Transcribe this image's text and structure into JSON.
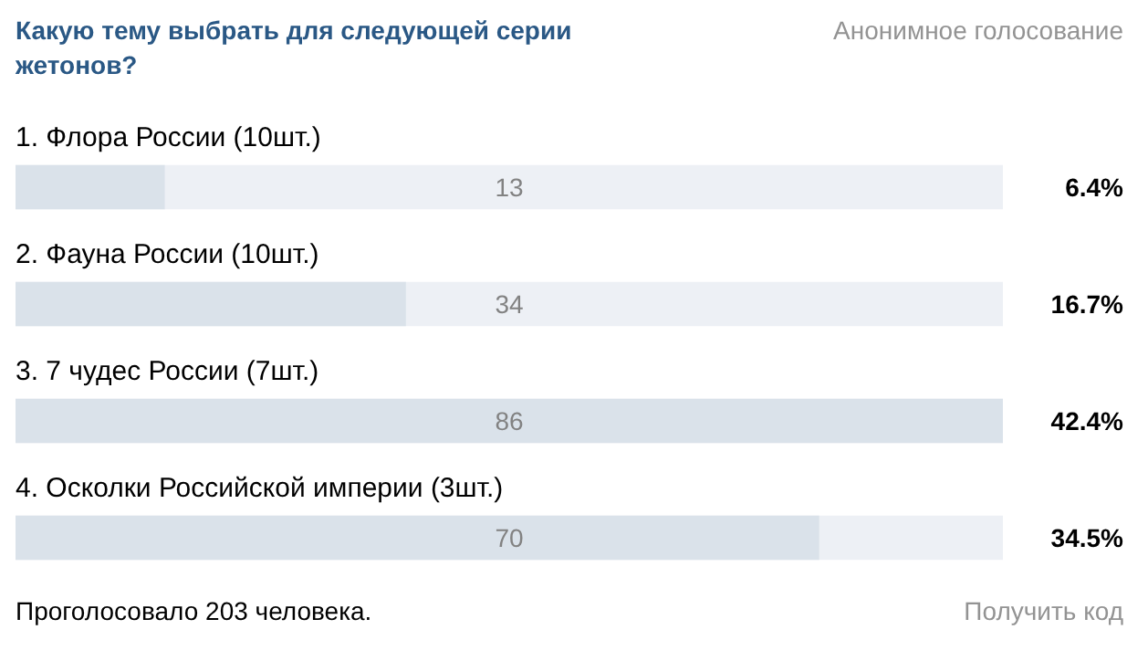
{
  "chart_data": {
    "type": "bar",
    "orientation": "horizontal",
    "title": "Какую тему выбрать для следующей серии жетонов?",
    "subtitle": "Анонимное голосование",
    "categories": [
      "1. Флора России (10шт.)",
      "2. Фауна России (10шт.)",
      "3. 7 чудес России (7шт.)",
      "4. Осколки Российской империи (3шт.)"
    ],
    "values": [
      13,
      34,
      86,
      70
    ],
    "color": "#dae2ea",
    "xlim": [
      0,
      86
    ],
    "data_labels": true,
    "tick_labels": "y",
    "grid": false,
    "annotations": [
      "6.4%",
      "16.7%",
      "42.4%",
      "34.5%",
      "Проголосовало 203 человека.",
      "Получить код"
    ]
  }
}
